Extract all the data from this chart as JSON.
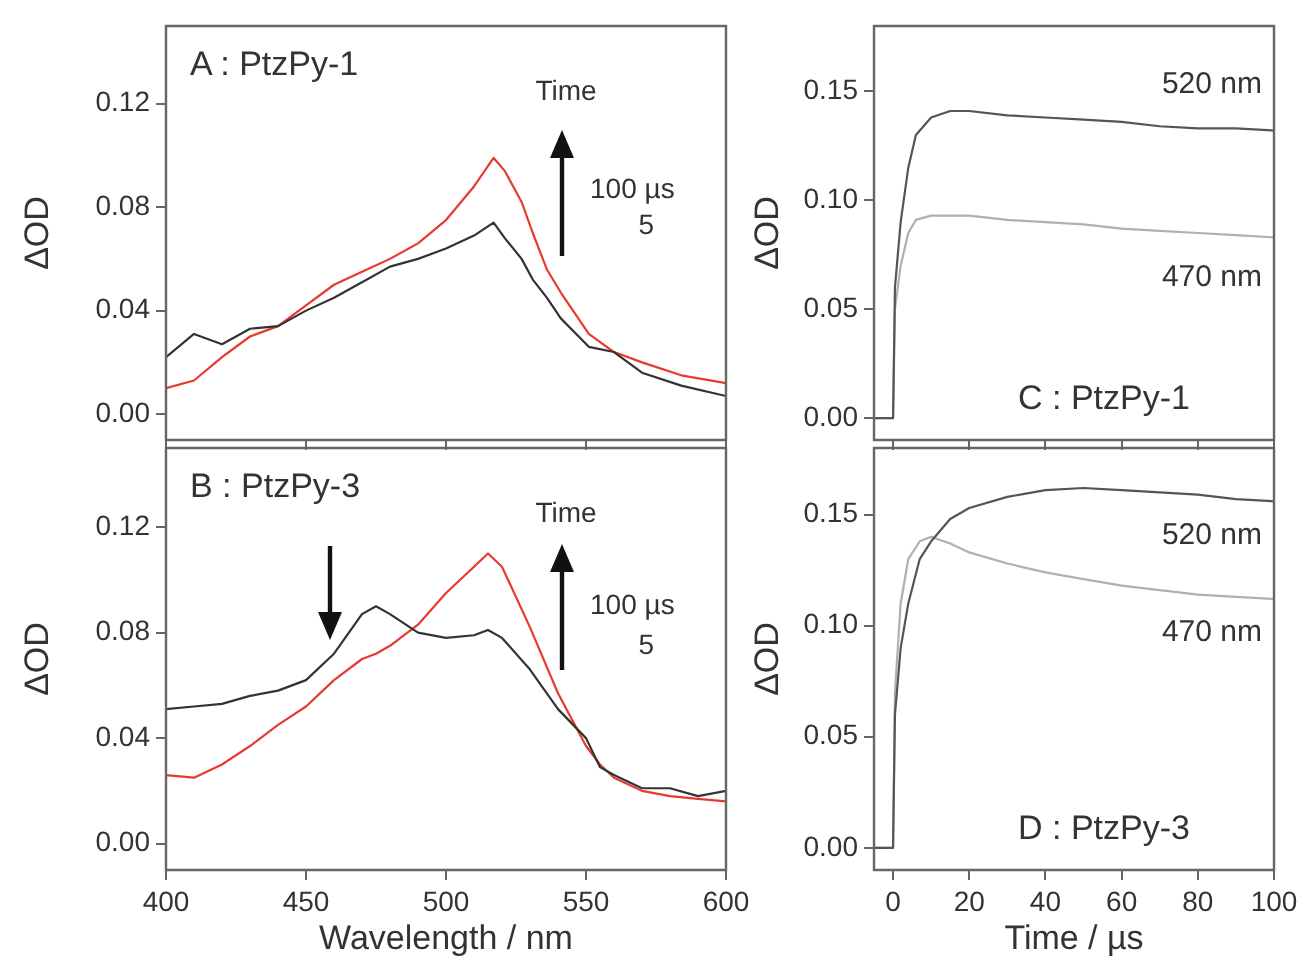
{
  "chart_data": [
    {
      "type": "line",
      "title": "A : PtzPy-1",
      "ylabel": "ΔOD",
      "xlim": [
        400,
        600
      ],
      "xticks": [
        400,
        450,
        500,
        550,
        600
      ],
      "ylim": [
        -0.01,
        0.15
      ],
      "yticks": [
        {
          "value": 0,
          "label": "0.00"
        },
        {
          "value": 0.04,
          "label": "0.04"
        },
        {
          "value": 0.08,
          "label": "0.08"
        },
        {
          "value": 0.12,
          "label": "0.12"
        }
      ],
      "tick_labels": "y",
      "marker": "none",
      "annotations": [
        "Time",
        "100 µs",
        "5"
      ],
      "x": [
        400,
        410,
        420,
        430,
        440,
        450,
        460,
        470,
        480,
        490,
        500,
        510,
        517,
        521,
        527,
        531,
        536,
        541,
        551,
        560,
        570,
        584,
        600
      ],
      "series": [
        {
          "color": "#333333",
          "values": [
            0.022,
            0.031,
            0.027,
            0.033,
            0.034,
            0.04,
            0.045,
            0.051,
            0.057,
            0.06,
            0.064,
            0.069,
            0.074,
            0.068,
            0.06,
            0.052,
            0.045,
            0.037,
            0.026,
            0.024,
            0.016,
            0.011,
            0.007
          ]
        },
        {
          "color": "#e8392f",
          "values": [
            0.01,
            0.013,
            0.022,
            0.03,
            0.034,
            0.042,
            0.05,
            0.055,
            0.06,
            0.066,
            0.075,
            0.088,
            0.099,
            0.094,
            0.082,
            0.07,
            0.056,
            0.047,
            0.031,
            0.024,
            0.02,
            0.015,
            0.012
          ]
        }
      ]
    },
    {
      "type": "line",
      "title": "B : PtzPy-3",
      "xlabel": "Wavelength / nm",
      "ylabel": "ΔOD",
      "xlim": [
        400,
        600
      ],
      "xticks": [
        400,
        450,
        500,
        550,
        600
      ],
      "ylim": [
        -0.01,
        0.15
      ],
      "yticks": [
        {
          "value": 0,
          "label": "0.00"
        },
        {
          "value": 0.04,
          "label": "0.04"
        },
        {
          "value": 0.08,
          "label": "0.08"
        },
        {
          "value": 0.12,
          "label": "0.12"
        }
      ],
      "marker": "none",
      "annotations": [
        "Time",
        "100 µs",
        "5"
      ],
      "x": [
        400,
        410,
        420,
        430,
        440,
        450,
        460,
        470,
        475,
        480,
        490,
        500,
        510,
        515,
        520,
        530,
        540,
        550,
        555,
        560,
        570,
        580,
        590,
        600
      ],
      "series": [
        {
          "color": "#333333",
          "values": [
            0.051,
            0.052,
            0.053,
            0.056,
            0.058,
            0.062,
            0.072,
            0.087,
            0.09,
            0.087,
            0.08,
            0.078,
            0.079,
            0.081,
            0.078,
            0.066,
            0.051,
            0.04,
            0.029,
            0.026,
            0.021,
            0.021,
            0.018,
            0.02
          ]
        },
        {
          "color": "#e8392f",
          "values": [
            0.026,
            0.025,
            0.03,
            0.037,
            0.045,
            0.052,
            0.062,
            0.07,
            0.072,
            0.075,
            0.083,
            0.095,
            0.105,
            0.11,
            0.105,
            0.082,
            0.057,
            0.037,
            0.03,
            0.025,
            0.02,
            0.018,
            0.017,
            0.016
          ]
        }
      ]
    },
    {
      "type": "line",
      "title": "C : PtzPy-1",
      "ylabel": "ΔOD",
      "xlim": [
        -5,
        100
      ],
      "xticks": [
        0,
        20,
        40,
        60,
        80,
        100
      ],
      "ylim": [
        -0.01,
        0.18
      ],
      "yticks": [
        {
          "value": 0,
          "label": "0.00"
        },
        {
          "value": 0.05,
          "label": "0.05"
        },
        {
          "value": 0.1,
          "label": "0.10"
        },
        {
          "value": 0.15,
          "label": "0.15"
        }
      ],
      "tick_labels": "y",
      "marker": "none",
      "x": [
        -5,
        -1,
        0,
        0.5,
        2,
        4,
        6,
        10,
        15,
        20,
        30,
        40,
        50,
        60,
        70,
        80,
        90,
        100
      ],
      "series": [
        {
          "name": "520 nm",
          "color": "#555555",
          "values": [
            0,
            0,
            0,
            0.06,
            0.09,
            0.115,
            0.13,
            0.138,
            0.141,
            0.141,
            0.139,
            0.138,
            0.137,
            0.136,
            0.134,
            0.133,
            0.133,
            0.132
          ]
        },
        {
          "name": "470 nm",
          "color": "#b0b0b0",
          "values": [
            0,
            0,
            0,
            0.05,
            0.07,
            0.085,
            0.091,
            0.093,
            0.093,
            0.093,
            0.091,
            0.09,
            0.089,
            0.087,
            0.086,
            0.085,
            0.084,
            0.083
          ]
        }
      ]
    },
    {
      "type": "line",
      "title": "D : PtzPy-3",
      "xlabel": "Time / µs",
      "ylabel": "ΔOD",
      "xlim": [
        -5,
        100
      ],
      "xticks": [
        0,
        20,
        40,
        60,
        80,
        100
      ],
      "ylim": [
        -0.01,
        0.18
      ],
      "yticks": [
        {
          "value": 0,
          "label": "0.00"
        },
        {
          "value": 0.05,
          "label": "0.05"
        },
        {
          "value": 0.1,
          "label": "0.10"
        },
        {
          "value": 0.15,
          "label": "0.15"
        }
      ],
      "marker": "none",
      "x": [
        -5,
        -1,
        0,
        0.5,
        2,
        4,
        7,
        10,
        15,
        20,
        30,
        40,
        50,
        60,
        70,
        80,
        90,
        100
      ],
      "series": [
        {
          "name": "520 nm",
          "color": "#555555",
          "values": [
            0,
            0,
            0,
            0.06,
            0.09,
            0.11,
            0.13,
            0.138,
            0.148,
            0.153,
            0.158,
            0.161,
            0.162,
            0.161,
            0.16,
            0.159,
            0.157,
            0.156
          ]
        },
        {
          "name": "470 nm",
          "color": "#b0b0b0",
          "values": [
            0,
            0,
            0,
            0.07,
            0.11,
            0.13,
            0.138,
            0.14,
            0.137,
            0.133,
            0.128,
            0.124,
            0.121,
            0.118,
            0.116,
            0.114,
            0.113,
            0.112
          ]
        }
      ]
    }
  ]
}
